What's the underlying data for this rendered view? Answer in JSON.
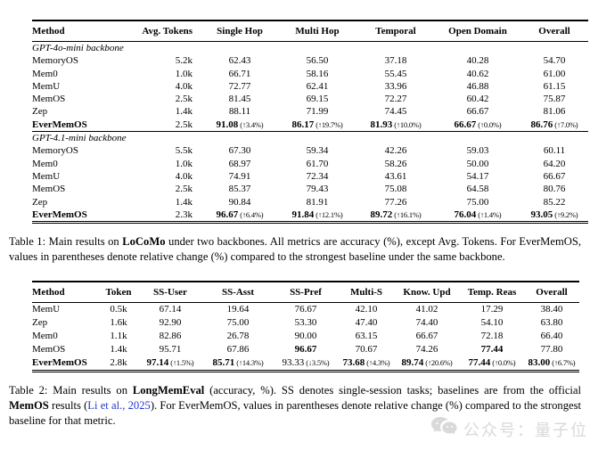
{
  "colors": {
    "link": "#2336c7",
    "watermark": "#a6a6a6"
  },
  "tables": [
    {
      "id": "table1",
      "name": "results-table-locomo",
      "headers": [
        "Method",
        "Avg. Tokens",
        "Single Hop",
        "Multi Hop",
        "Temporal",
        "Open Domain",
        "Overall"
      ],
      "sections": [
        {
          "label": "GPT-4o-mini backbone",
          "rows": [
            {
              "method": "MemoryOS",
              "token": "5.2k",
              "vals": [
                {
                  "v": "62.43"
                },
                {
                  "v": "56.50"
                },
                {
                  "v": "37.18"
                },
                {
                  "v": "40.28"
                },
                {
                  "v": "54.70"
                }
              ]
            },
            {
              "method": "Mem0",
              "token": "1.0k",
              "vals": [
                {
                  "v": "66.71"
                },
                {
                  "v": "58.16"
                },
                {
                  "v": "55.45"
                },
                {
                  "v": "40.62"
                },
                {
                  "v": "61.00"
                }
              ]
            },
            {
              "method": "MemU",
              "token": "4.0k",
              "vals": [
                {
                  "v": "72.77"
                },
                {
                  "v": "62.41"
                },
                {
                  "v": "33.96"
                },
                {
                  "v": "46.88"
                },
                {
                  "v": "61.15"
                }
              ]
            },
            {
              "method": "MemOS",
              "token": "2.5k",
              "vals": [
                {
                  "v": "81.45"
                },
                {
                  "v": "69.15"
                },
                {
                  "v": "72.27"
                },
                {
                  "v": "60.42"
                },
                {
                  "v": "75.87"
                }
              ]
            },
            {
              "method": "Zep",
              "token": "1.4k",
              "vals": [
                {
                  "v": "88.11"
                },
                {
                  "v": "71.99"
                },
                {
                  "v": "74.45"
                },
                {
                  "v": "66.67"
                },
                {
                  "v": "81.06"
                }
              ]
            },
            {
              "method": "EverMemOS",
              "bold": true,
              "token": "2.5k",
              "vals": [
                {
                  "v": "91.08",
                  "b": true,
                  "n": "(↑3.4%)"
                },
                {
                  "v": "86.17",
                  "b": true,
                  "n": "(↑19.7%)"
                },
                {
                  "v": "81.93",
                  "b": true,
                  "n": "(↑10.0%)"
                },
                {
                  "v": "66.67",
                  "b": true,
                  "n": "(↑0.0%)"
                },
                {
                  "v": "86.76",
                  "b": true,
                  "n": "(↑7.0%)"
                }
              ]
            }
          ]
        },
        {
          "label": "GPT-4.1-mini backbone",
          "rows": [
            {
              "method": "MemoryOS",
              "token": "5.5k",
              "vals": [
                {
                  "v": "67.30"
                },
                {
                  "v": "59.34"
                },
                {
                  "v": "42.26"
                },
                {
                  "v": "59.03"
                },
                {
                  "v": "60.11"
                }
              ]
            },
            {
              "method": "Mem0",
              "token": "1.0k",
              "vals": [
                {
                  "v": "68.97"
                },
                {
                  "v": "61.70"
                },
                {
                  "v": "58.26"
                },
                {
                  "v": "50.00"
                },
                {
                  "v": "64.20"
                }
              ]
            },
            {
              "method": "MemU",
              "token": "4.0k",
              "vals": [
                {
                  "v": "74.91"
                },
                {
                  "v": "72.34"
                },
                {
                  "v": "43.61"
                },
                {
                  "v": "54.17"
                },
                {
                  "v": "66.67"
                }
              ]
            },
            {
              "method": "MemOS",
              "token": "2.5k",
              "vals": [
                {
                  "v": "85.37"
                },
                {
                  "v": "79.43"
                },
                {
                  "v": "75.08"
                },
                {
                  "v": "64.58"
                },
                {
                  "v": "80.76"
                }
              ]
            },
            {
              "method": "Zep",
              "token": "1.4k",
              "vals": [
                {
                  "v": "90.84"
                },
                {
                  "v": "81.91"
                },
                {
                  "v": "77.26"
                },
                {
                  "v": "75.00"
                },
                {
                  "v": "85.22"
                }
              ]
            },
            {
              "method": "EverMemOS",
              "bold": true,
              "token": "2.3k",
              "vals": [
                {
                  "v": "96.67",
                  "b": true,
                  "n": "(↑6.4%)"
                },
                {
                  "v": "91.84",
                  "b": true,
                  "n": "(↑12.1%)"
                },
                {
                  "v": "89.72",
                  "b": true,
                  "n": "(↑16.1%)"
                },
                {
                  "v": "76.04",
                  "b": true,
                  "n": "(↑1.4%)"
                },
                {
                  "v": "93.05",
                  "b": true,
                  "n": "(↑9.2%)"
                }
              ]
            }
          ]
        }
      ]
    },
    {
      "id": "table2",
      "name": "results-table-longmemeval",
      "headers": [
        "Method",
        "Token",
        "SS-User",
        "SS-Asst",
        "SS-Pref",
        "Multi-S",
        "Know. Upd",
        "Temp. Reas",
        "Overall"
      ],
      "sections": [
        {
          "label": null,
          "rows": [
            {
              "method": "MemU",
              "token": "0.5k",
              "vals": [
                {
                  "v": "67.14"
                },
                {
                  "v": "19.64"
                },
                {
                  "v": "76.67"
                },
                {
                  "v": "42.10"
                },
                {
                  "v": "41.02"
                },
                {
                  "v": "17.29"
                },
                {
                  "v": "38.40"
                }
              ]
            },
            {
              "method": "Zep",
              "token": "1.6k",
              "vals": [
                {
                  "v": "92.90"
                },
                {
                  "v": "75.00"
                },
                {
                  "v": "53.30"
                },
                {
                  "v": "47.40"
                },
                {
                  "v": "74.40"
                },
                {
                  "v": "54.10"
                },
                {
                  "v": "63.80"
                }
              ]
            },
            {
              "method": "Mem0",
              "token": "1.1k",
              "vals": [
                {
                  "v": "82.86"
                },
                {
                  "v": "26.78"
                },
                {
                  "v": "90.00"
                },
                {
                  "v": "63.15"
                },
                {
                  "v": "66.67"
                },
                {
                  "v": "72.18"
                },
                {
                  "v": "66.40"
                }
              ]
            },
            {
              "method": "MemOS",
              "token": "1.4k",
              "vals": [
                {
                  "v": "95.71"
                },
                {
                  "v": "67.86"
                },
                {
                  "v": "96.67",
                  "b": true
                },
                {
                  "v": "70.67"
                },
                {
                  "v": "74.26"
                },
                {
                  "v": "77.44",
                  "b": true
                },
                {
                  "v": "77.80"
                }
              ]
            },
            {
              "method": "EverMemOS",
              "bold": true,
              "token": "2.8k",
              "vals": [
                {
                  "v": "97.14",
                  "b": true,
                  "n": "(↑1.5%)"
                },
                {
                  "v": "85.71",
                  "b": true,
                  "n": "(↑14.3%)"
                },
                {
                  "v": "93.33",
                  "n": "(↓3.5%)"
                },
                {
                  "v": "73.68",
                  "b": true,
                  "n": "(↑4.3%)"
                },
                {
                  "v": "89.74",
                  "b": true,
                  "n": "(↑20.6%)"
                },
                {
                  "v": "77.44",
                  "b": true,
                  "n": "(↑0.0%)"
                },
                {
                  "v": "83.00",
                  "b": true,
                  "n": "(↑6.7%)"
                }
              ]
            }
          ]
        }
      ]
    }
  ],
  "captions": {
    "caption1": [
      {
        "t": "Table 1: Main results on "
      },
      {
        "t": "LoCoMo",
        "b": true
      },
      {
        "t": " under two backbones. All metrics are accuracy (%), except Avg. Tokens. For EverMemOS, values in parentheses denote relative change (%) compared to the strongest baseline under the same backbone."
      }
    ],
    "caption2": [
      {
        "t": "Table 2: Main results on "
      },
      {
        "t": "LongMemEval",
        "b": true
      },
      {
        "t": " (accuracy, %). SS denotes single-session tasks; baselines are from the official "
      },
      {
        "t": "MemOS",
        "b": true
      },
      {
        "t": " results ("
      },
      {
        "t": "Li et al., 2025",
        "link": true
      },
      {
        "t": "). For EverMemOS, values in parentheses denote relative change (%) compared to the strongest baseline for that metric."
      }
    ]
  },
  "watermark": {
    "icon": "chat-bubbles-icon",
    "text": "公众号：量子位"
  }
}
